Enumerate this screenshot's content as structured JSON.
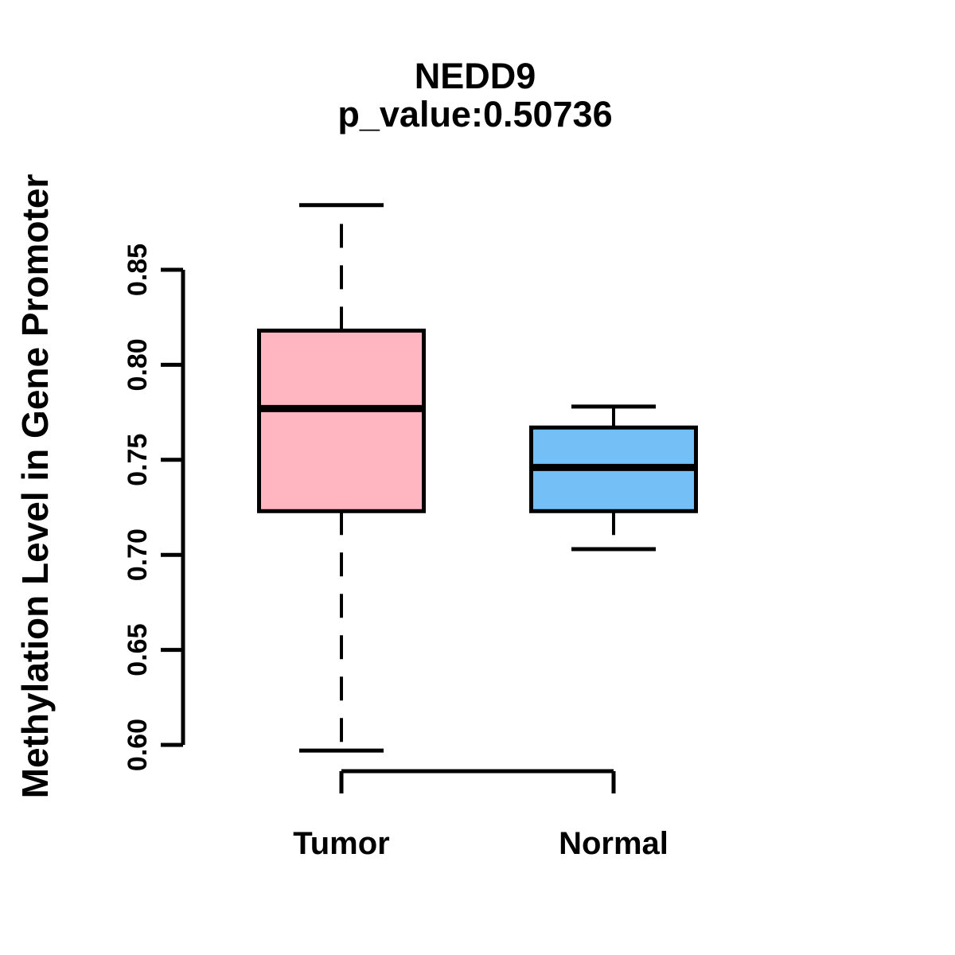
{
  "chart_data": {
    "type": "boxplot",
    "title": "NEDD9",
    "subtitle": "p_value:0.50736",
    "ylabel": "Methylation Level in Gene Promoter",
    "xlabel": "",
    "categories": [
      "Tumor",
      "Normal"
    ],
    "y_ticks": [
      0.6,
      0.65,
      0.7,
      0.75,
      0.8,
      0.85
    ],
    "ylim": [
      0.597,
      0.884
    ],
    "grid": false,
    "legend": "none",
    "whisker_style": "dashed",
    "background_color": "#FFFFFF",
    "line_color": "#000000",
    "series": [
      {
        "name": "Tumor",
        "fill_color": "#FFB6C1",
        "stats": {
          "whisker_low": 0.597,
          "q1": 0.723,
          "median": 0.777,
          "q3": 0.818,
          "whisker_high": 0.884
        }
      },
      {
        "name": "Normal",
        "fill_color": "#74BFF5",
        "stats": {
          "whisker_low": 0.703,
          "q1": 0.723,
          "median": 0.746,
          "q3": 0.767,
          "whisker_high": 0.778
        }
      }
    ]
  }
}
